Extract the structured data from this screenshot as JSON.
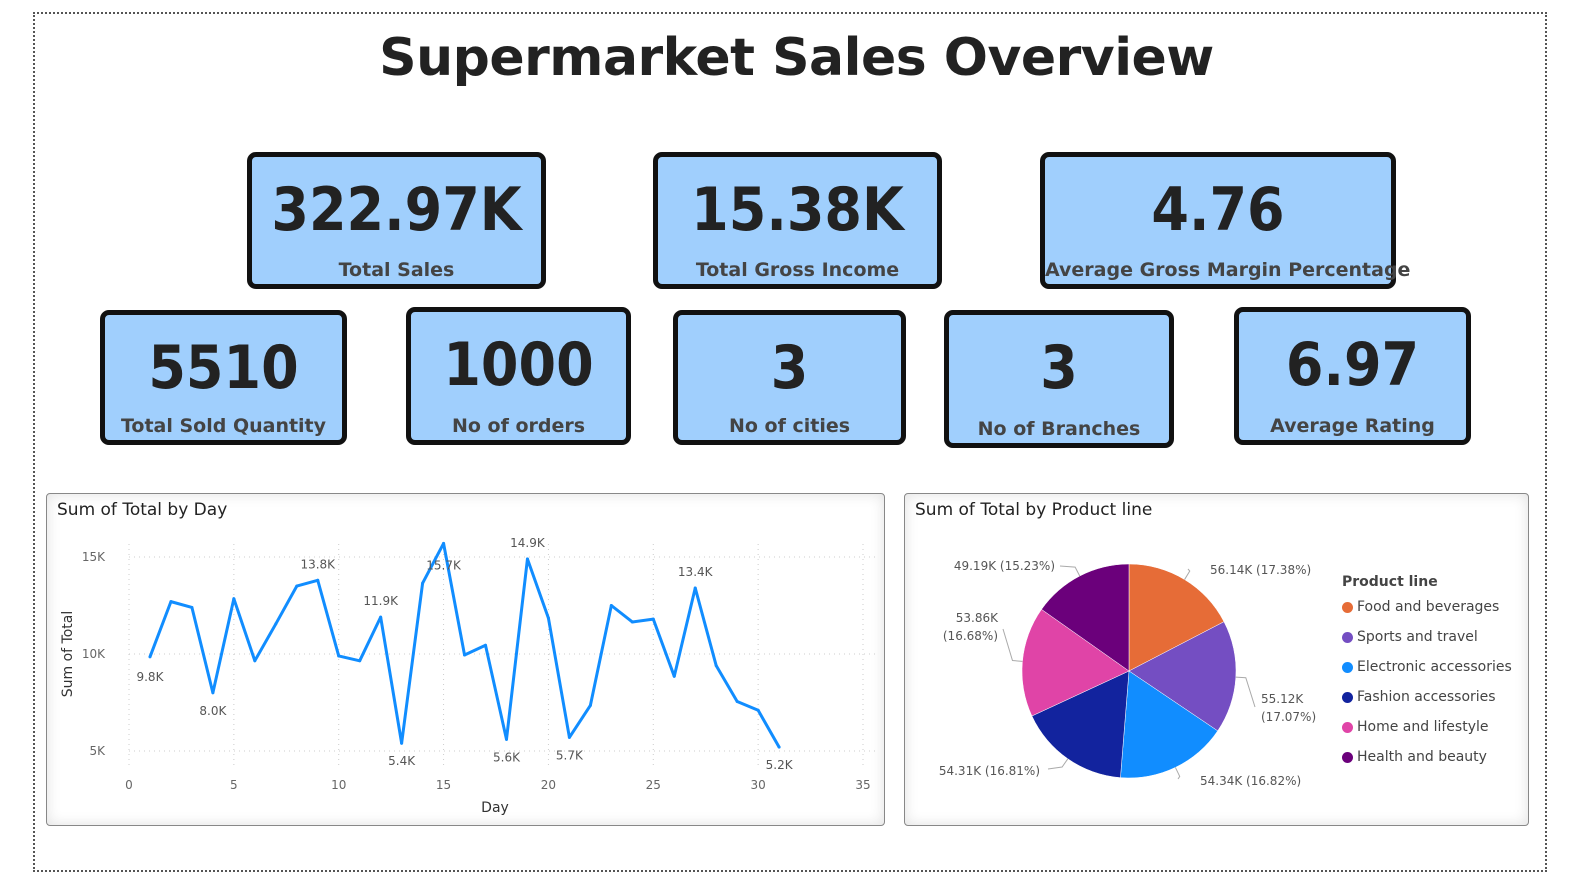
{
  "title": "Supermarket Sales Overview",
  "kpis": [
    {
      "value": "322.97K",
      "label": "Total Sales"
    },
    {
      "value": "15.38K",
      "label": "Total Gross Income"
    },
    {
      "value": "4.76",
      "label": "Average Gross Margin Percentage"
    },
    {
      "value": "5510",
      "label": "Total Sold Quantity"
    },
    {
      "value": "1000",
      "label": "No of orders"
    },
    {
      "value": "3",
      "label": "No of cities"
    },
    {
      "value": "3",
      "label": "No of Branches"
    },
    {
      "value": "6.97",
      "label": "Average Rating"
    }
  ],
  "chart_data": [
    {
      "type": "line",
      "title": "Sum of Total by Day",
      "xlabel": "Day",
      "ylabel": "Sum of Total",
      "xlim": [
        0,
        35
      ],
      "ylim": [
        5000,
        15000
      ],
      "xticks": [
        "0",
        "5",
        "10",
        "15",
        "20",
        "25",
        "30",
        "35"
      ],
      "yticks": [
        "5K",
        "10K",
        "15K"
      ],
      "grid": true,
      "color": "#118dff",
      "x": [
        1,
        2,
        3,
        4,
        5,
        6,
        7,
        8,
        9,
        10,
        11,
        12,
        13,
        14,
        15,
        16,
        17,
        18,
        19,
        20,
        21,
        22,
        23,
        24,
        25,
        26,
        27,
        28,
        29,
        30,
        31
      ],
      "y": [
        9850,
        12700,
        12400,
        8000,
        12850,
        9650,
        11550,
        13500,
        13800,
        9900,
        9650,
        11900,
        5400,
        13650,
        15700,
        9950,
        10450,
        5600,
        14900,
        11850,
        5700,
        7350,
        12500,
        11650,
        11800,
        8850,
        13400,
        9400,
        7550,
        7100,
        5200
      ],
      "data_labels": [
        {
          "day": 1,
          "text": "9.8K"
        },
        {
          "day": 4,
          "text": "8.0K"
        },
        {
          "day": 9,
          "text": "13.8K"
        },
        {
          "day": 12,
          "text": "11.9K"
        },
        {
          "day": 13,
          "text": "5.4K"
        },
        {
          "day": 15,
          "text": "15.7K"
        },
        {
          "day": 18,
          "text": "5.6K"
        },
        {
          "day": 19,
          "text": "14.9K"
        },
        {
          "day": 21,
          "text": "5.7K"
        },
        {
          "day": 27,
          "text": "13.4K"
        },
        {
          "day": 31,
          "text": "5.2K"
        }
      ]
    },
    {
      "type": "pie",
      "title": "Sum of Total by Product line",
      "legend_title": "Product line",
      "legend_position": "right",
      "slices": [
        {
          "name": "Food and beverages",
          "value": 56140,
          "label": "56.14K (17.38%)",
          "color": "#e66c37"
        },
        {
          "name": "Sports and travel",
          "value": 55120,
          "label": "55.12K (17.07%)",
          "color": "#744ec2"
        },
        {
          "name": "Electronic accessories",
          "value": 54340,
          "label": "54.34K (16.82%)",
          "color": "#118dff"
        },
        {
          "name": "Fashion accessories",
          "value": 54310,
          "label": "54.31K (16.81%)",
          "color": "#12239e"
        },
        {
          "name": "Home and lifestyle",
          "value": 53860,
          "label": "53.86K (16.68%)",
          "color": "#e044a7"
        },
        {
          "name": "Health and beauty",
          "value": 49190,
          "label": "49.19K (15.23%)",
          "color": "#6b007b"
        }
      ]
    }
  ]
}
